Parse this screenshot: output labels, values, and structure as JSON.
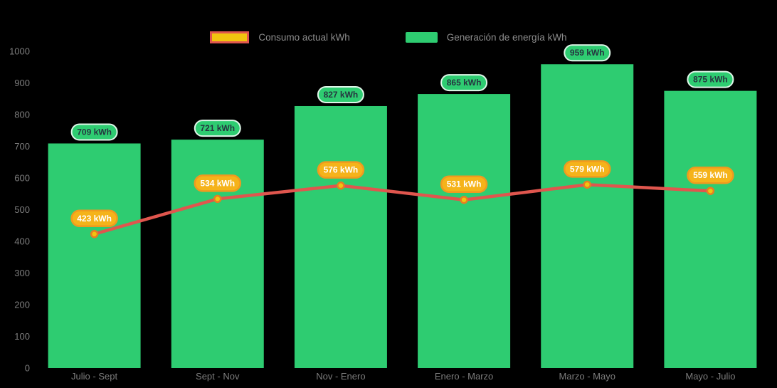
{
  "colors": {
    "background": "#000000",
    "bar_fill": "#2ecc71",
    "bar_badge_bg": "#2ecc71",
    "bar_badge_border": "#dff7e9",
    "bar_badge_text": "#263540",
    "line_stroke": "#e0564e",
    "point_fill": "#f1c40f",
    "point_border": "#e67e22",
    "line_badge_bg": "#f5b31a",
    "line_badge_border": "#ef9a1f",
    "line_badge_text": "#ffffff",
    "axis_text": "#7d7d7d",
    "legend_text": "#8c8c8c"
  },
  "legend": {
    "consumption_label": "Consumo actual kWh",
    "generation_label": "Generación de energía kWh"
  },
  "chart_data": {
    "type": "bar+line",
    "categories": [
      "Julio - Sept",
      "Sept - Nov",
      "Nov - Enero",
      "Enero - Marzo",
      "Marzo - Mayo",
      "Mayo - Julio"
    ],
    "series": [
      {
        "name": "Generación de energía kWh",
        "type": "bar",
        "values": [
          709,
          721,
          827,
          865,
          959,
          875
        ],
        "labels": [
          "709 kWh",
          "721 kWh",
          "827 kWh",
          "865 kWh",
          "959 kWh",
          "875 kWh"
        ]
      },
      {
        "name": "Consumo actual kWh",
        "type": "line",
        "values": [
          423,
          534,
          576,
          531,
          579,
          559
        ],
        "labels": [
          "423 kWh",
          "534 kWh",
          "576 kWh",
          "531 kWh",
          "579 kWh",
          "559 kWh"
        ]
      }
    ],
    "unit": "kWh",
    "ylim": [
      0,
      1000
    ],
    "yticks": [
      0,
      100,
      200,
      300,
      400,
      500,
      600,
      700,
      800,
      900,
      1000
    ],
    "grid": false,
    "legend_position": "top"
  }
}
